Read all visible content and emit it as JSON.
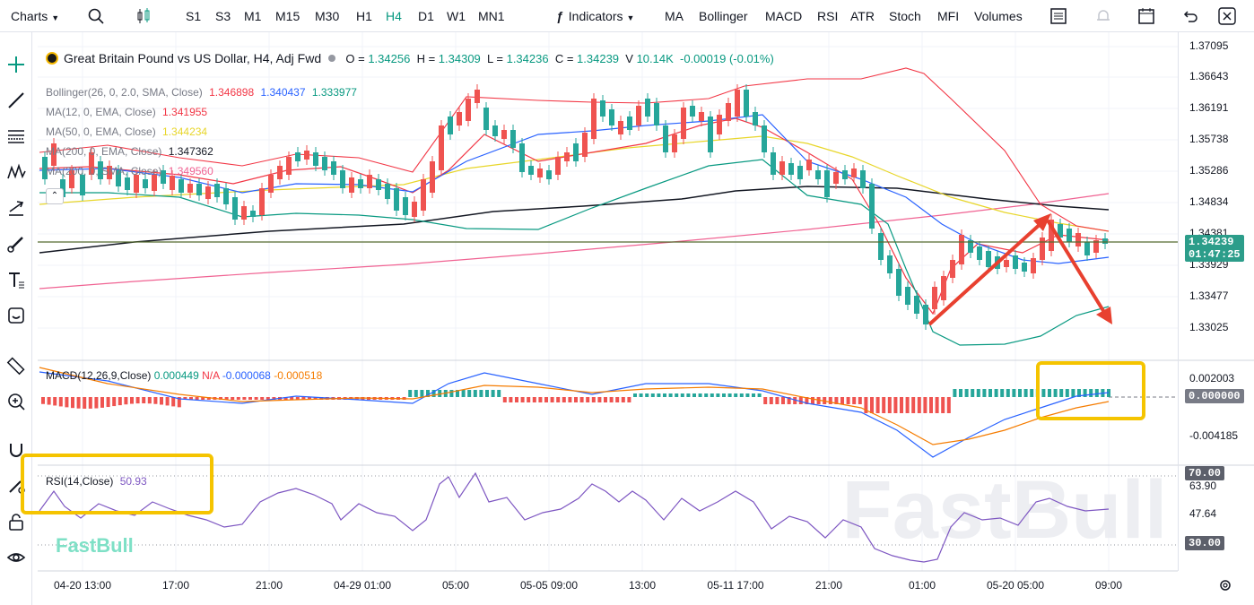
{
  "toolbar": {
    "charts_label": "Charts",
    "intervals": [
      "S1",
      "S3",
      "M1",
      "M15",
      "M30",
      "H1",
      "H4",
      "D1",
      "W1",
      "MN1"
    ],
    "active_interval": "H4",
    "indicators_label": "Indicators",
    "quick_indicators": [
      "MA",
      "Bollinger",
      "MACD",
      "RSI",
      "ATR",
      "Stoch",
      "MFI",
      "Volumes"
    ]
  },
  "symbol": {
    "title": "Great Britain Pound vs US Dollar, H4, Adj Fwd",
    "o_label": "O =",
    "o_value": "1.34256",
    "h_label": "H =",
    "h_value": "1.34309",
    "l_label": "L =",
    "l_value": "1.34236",
    "c_label": "C =",
    "c_value": "1.34239",
    "v_label": "V",
    "v_value": "10.14K",
    "change": "-0.00019 (-0.01%)"
  },
  "studies": [
    {
      "label": "Bollinger(26, 0, 2.0, SMA, Close)",
      "values": [
        {
          "v": "1.346898",
          "color": "#f23645"
        },
        {
          "v": "1.340437",
          "color": "#2962ff"
        },
        {
          "v": "1.333977",
          "color": "#089981"
        }
      ]
    },
    {
      "label": "MA(12, 0, EMA, Close)",
      "values": [
        {
          "v": "1.341955",
          "color": "#f23645"
        }
      ]
    },
    {
      "label": "MA(50, 0, EMA, Close)",
      "values": [
        {
          "v": "1.344234",
          "color": "#e8d62a"
        }
      ]
    },
    {
      "label": "MA(200, 0, EMA, Close)",
      "values": [
        {
          "v": "1.347362",
          "color": "#131722"
        }
      ]
    },
    {
      "label": "MA(200, 0, SMA, Close)",
      "values": [
        {
          "v": "1.349560",
          "color": "#f06292"
        }
      ]
    }
  ],
  "macd": {
    "label": "MACD(12,26,9,Close)",
    "v1": "0.000449",
    "v2": "N/A",
    "v3": "-0.000068",
    "v4": "-0.000518"
  },
  "rsi": {
    "label": "RSI(14,Close)",
    "value": "50.93"
  },
  "price_axis": [
    "1.37095",
    "1.36643",
    "1.36191",
    "1.35738",
    "1.35286",
    "1.34834",
    "1.34381",
    "1.33929",
    "1.33477",
    "1.33025"
  ],
  "current_price": "1.34239",
  "countdown": "01:47:25",
  "macd_axis": [
    "0.002003",
    "0.000000",
    "-0.004185"
  ],
  "macd_tag": "0.000000",
  "rsi_axis": [
    "70.00",
    "63.90",
    "47.64",
    "30.00"
  ],
  "time_axis": [
    "04-20 13:00",
    "17:00",
    "21:00",
    "04-29 01:00",
    "05:00",
    "05-05 09:00",
    "13:00",
    "05-11 17:00",
    "21:00",
    "01:00",
    "05-20 05:00",
    "09:00"
  ],
  "watermark": "FastBull",
  "brand": "FastBull",
  "colors": {
    "up": "#26a69a",
    "down": "#ef5350",
    "annot_arrow": "#e8402f",
    "highlight": "#f5c400"
  }
}
